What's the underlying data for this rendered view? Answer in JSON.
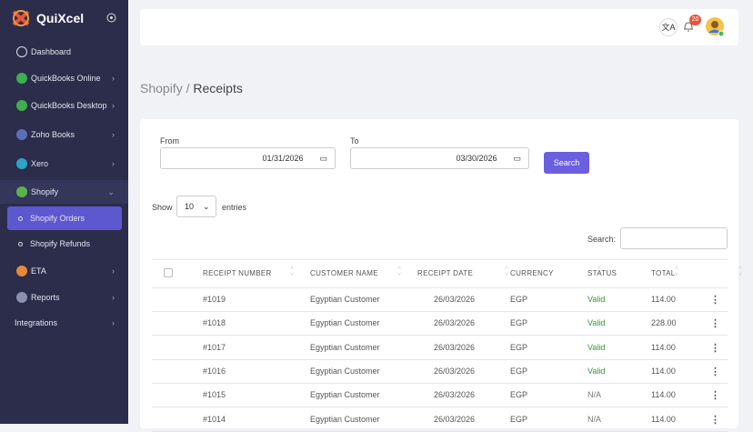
{
  "brand": "QuiXcel",
  "nav": [
    "Dashboard",
    "QuickBooks Online",
    "QuickBooks Desktop",
    "Zoho Books",
    "Xero",
    "Shopify",
    "Shopify Orders",
    "Shopify Refunds",
    "ETA",
    "Reports",
    "Integrations"
  ],
  "header": {
    "notifications": "20"
  },
  "breadcrumb": {
    "parent": "Shopify",
    "separator": "/",
    "current": "Receipts"
  },
  "filters": {
    "from_label": "From",
    "from_value": "01/31/2026",
    "to_label": "To",
    "to_value": "03/30/2026",
    "button": "Search"
  },
  "table_controls": {
    "show": "Show",
    "page_size": "10",
    "entries": "entries",
    "search": "Search:"
  },
  "table": {
    "columns": [
      "RECEIPT NUMBER",
      "CUSTOMER NAME",
      "RECEIPT DATE",
      "CURRENCY",
      "STATUS",
      "TOTAL"
    ],
    "rows": [
      [
        "#1019",
        "Egyptian Customer",
        "26/03/2026",
        "EGP",
        "Valid",
        "114.00"
      ],
      [
        "#1018",
        "Egyptian Customer",
        "26/03/2026",
        "EGP",
        "Valid",
        "228.00"
      ],
      [
        "#1017",
        "Egyptian Customer",
        "26/03/2026",
        "EGP",
        "Valid",
        "114.00"
      ],
      [
        "#1016",
        "Egyptian Customer",
        "26/03/2026",
        "EGP",
        "Valid",
        "114.00"
      ],
      [
        "#1015",
        "Egyptian Customer",
        "26/03/2026",
        "EGP",
        "N/A",
        "114.00"
      ],
      [
        "#1014",
        "Egyptian Customer",
        "26/03/2026",
        "EGP",
        "N/A",
        "114.00"
      ]
    ]
  }
}
